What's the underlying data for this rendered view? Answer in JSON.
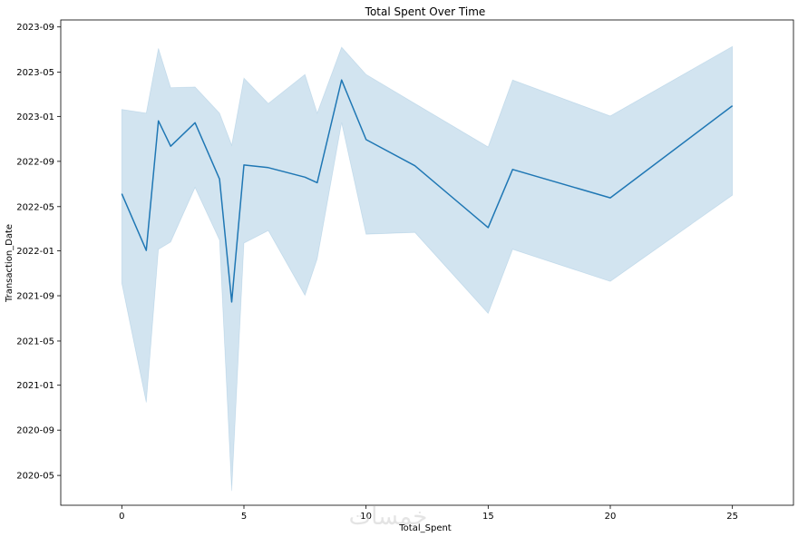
{
  "chart_data": {
    "type": "line",
    "title": "Total Spent Over Time",
    "xlabel": "Total_Spent",
    "ylabel": "Transaction_Date",
    "xlim": [
      -2.5,
      27.5
    ],
    "ylim": [
      "2020-02-10",
      "2023-09-20"
    ],
    "xticks": [
      0,
      5,
      10,
      15,
      20,
      25
    ],
    "yticks": [
      "2020-05",
      "2020-09",
      "2021-01",
      "2021-05",
      "2021-09",
      "2022-01",
      "2022-05",
      "2022-09",
      "2023-01",
      "2023-05",
      "2023-09"
    ],
    "grid": false,
    "legend": "none",
    "series": [
      {
        "color": "#1f77b4",
        "band_color": "#1f77b4",
        "points": [
          {
            "x": 0,
            "y": "2022-06-05",
            "lo": "2021-10-05",
            "hi": "2023-01-20"
          },
          {
            "x": 1,
            "y": "2022-01-02",
            "lo": "2020-11-15",
            "hi": "2023-01-10"
          },
          {
            "x": 1.5,
            "y": "2022-12-20",
            "lo": "2022-01-05",
            "hi": "2023-07-05"
          },
          {
            "x": 2,
            "y": "2022-10-12",
            "lo": "2022-01-25",
            "hi": "2023-03-20"
          },
          {
            "x": 3,
            "y": "2022-12-15",
            "lo": "2022-06-22",
            "hi": "2023-03-22"
          },
          {
            "x": 4,
            "y": "2022-07-15",
            "lo": "2022-01-30",
            "hi": "2023-01-10"
          },
          {
            "x": 4.5,
            "y": "2021-08-15",
            "lo": "2020-03-20",
            "hi": "2022-10-15"
          },
          {
            "x": 5,
            "y": "2022-08-22",
            "lo": "2022-01-22",
            "hi": "2023-04-15"
          },
          {
            "x": 6,
            "y": "2022-08-15",
            "lo": "2022-02-25",
            "hi": "2023-02-05"
          },
          {
            "x": 7.5,
            "y": "2022-07-20",
            "lo": "2021-09-02",
            "hi": "2023-04-25"
          },
          {
            "x": 8,
            "y": "2022-07-05",
            "lo": "2021-12-10",
            "hi": "2023-01-10"
          },
          {
            "x": 9,
            "y": "2023-04-10",
            "lo": "2022-12-15",
            "hi": "2023-07-08"
          },
          {
            "x": 10,
            "y": "2022-10-30",
            "lo": "2022-02-15",
            "hi": "2023-04-25"
          },
          {
            "x": 12,
            "y": "2022-08-20",
            "lo": "2022-02-20",
            "hi": "2023-02-05"
          },
          {
            "x": 15,
            "y": "2022-03-05",
            "lo": "2021-07-15",
            "hi": "2022-10-10"
          },
          {
            "x": 16,
            "y": "2022-08-10",
            "lo": "2022-01-05",
            "hi": "2023-04-10"
          },
          {
            "x": 20,
            "y": "2022-05-25",
            "lo": "2021-10-10",
            "hi": "2023-01-02"
          },
          {
            "x": 25,
            "y": "2023-01-30",
            "lo": "2022-06-01",
            "hi": "2023-07-10"
          }
        ]
      }
    ]
  },
  "watermark": {
    "text": "خمسات"
  }
}
